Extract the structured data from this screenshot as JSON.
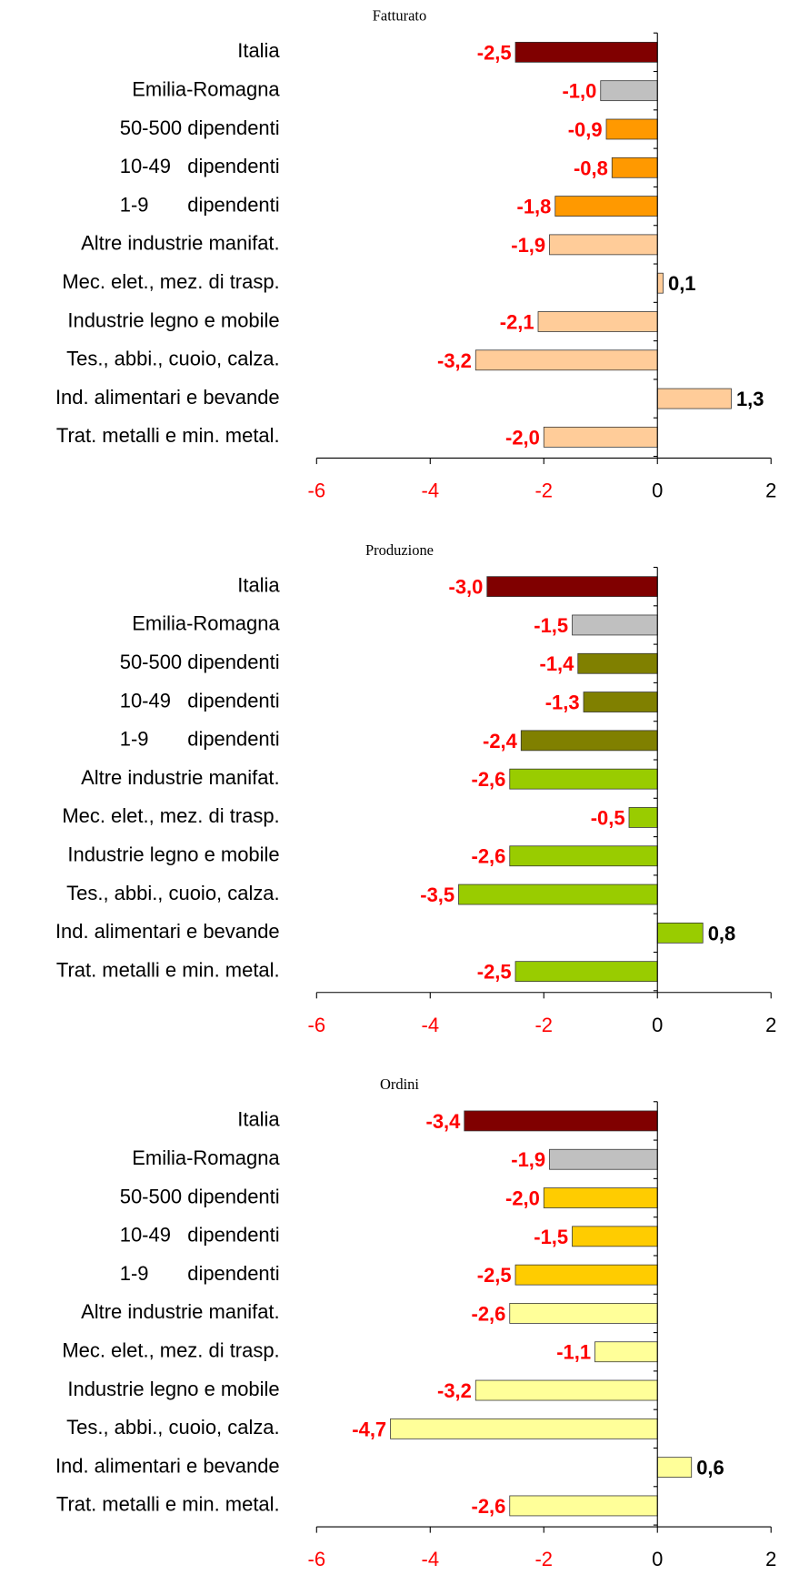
{
  "chart_data": [
    {
      "type": "bar",
      "title": "Fatturato",
      "categories": [
        "Italia",
        "Emilia-Romagna",
        "50-500 dipendenti",
        "10-49   dipendenti",
        "1-9       dipendenti",
        "Altre industrie manifat.",
        "Mec. elet., mez. di trasp.",
        "Industrie legno e mobile",
        "Tes., abbi., cuoio, calza.",
        "Ind. alimentari e bevande",
        "Trat. metalli e min. metal."
      ],
      "values": [
        -2.5,
        -1.0,
        -0.9,
        -0.8,
        -1.8,
        -1.9,
        0.1,
        -2.1,
        -3.2,
        1.3,
        -2.0
      ],
      "value_labels": [
        "-2,5",
        "-1,0",
        "-0,9",
        "-0,8",
        "-1,8",
        "-1,9",
        "0,1",
        "-2,1",
        "-3,2",
        "1,3",
        "-2,0"
      ],
      "colors": [
        "#800000",
        "#c0c0c0",
        "#ff9900",
        "#ff9900",
        "#ff9900",
        "#ffcc99",
        "#ffcc99",
        "#ffcc99",
        "#ffcc99",
        "#ffcc99",
        "#ffcc99"
      ],
      "xlim": [
        -6,
        2
      ],
      "xticks": [
        -6,
        -4,
        -2,
        0,
        2
      ]
    },
    {
      "type": "bar",
      "title": "Produzione",
      "categories": [
        "Italia",
        "Emilia-Romagna",
        "50-500 dipendenti",
        "10-49   dipendenti",
        "1-9       dipendenti",
        "Altre industrie manifat.",
        "Mec. elet., mez. di trasp.",
        "Industrie legno e mobile",
        "Tes., abbi., cuoio, calza.",
        "Ind. alimentari e bevande",
        "Trat. metalli e min. metal."
      ],
      "values": [
        -3.0,
        -1.5,
        -1.4,
        -1.3,
        -2.4,
        -2.6,
        -0.5,
        -2.6,
        -3.5,
        0.8,
        -2.5
      ],
      "value_labels": [
        "-3,0",
        "-1,5",
        "-1,4",
        "-1,3",
        "-2,4",
        "-2,6",
        "-0,5",
        "-2,6",
        "-3,5",
        "0,8",
        "-2,5"
      ],
      "colors": [
        "#800000",
        "#c0c0c0",
        "#808000",
        "#808000",
        "#808000",
        "#99cc00",
        "#99cc00",
        "#99cc00",
        "#99cc00",
        "#99cc00",
        "#99cc00"
      ],
      "xlim": [
        -6,
        2
      ],
      "xticks": [
        -6,
        -4,
        -2,
        0,
        2
      ]
    },
    {
      "type": "bar",
      "title": "Ordini",
      "categories": [
        "Italia",
        "Emilia-Romagna",
        "50-500 dipendenti",
        "10-49   dipendenti",
        "1-9       dipendenti",
        "Altre industrie manifat.",
        "Mec. elet., mez. di trasp.",
        "Industrie legno e mobile",
        "Tes., abbi., cuoio, calza.",
        "Ind. alimentari e bevande",
        "Trat. metalli e min. metal."
      ],
      "values": [
        -3.4,
        -1.9,
        -2.0,
        -1.5,
        -2.5,
        -2.6,
        -1.1,
        -3.2,
        -4.7,
        0.6,
        -2.6
      ],
      "value_labels": [
        "-3,4",
        "-1,9",
        "-2,0",
        "-1,5",
        "-2,5",
        "-2,6",
        "-1,1",
        "-3,2",
        "-4,7",
        "0,6",
        "-2,6"
      ],
      "colors": [
        "#800000",
        "#c0c0c0",
        "#ffcc00",
        "#ffcc00",
        "#ffcc00",
        "#ffff99",
        "#ffff99",
        "#ffff99",
        "#ffff99",
        "#ffff99",
        "#ffff99"
      ],
      "xlim": [
        -6,
        2
      ],
      "xticks": [
        -6,
        -4,
        -2,
        0,
        2
      ]
    }
  ]
}
